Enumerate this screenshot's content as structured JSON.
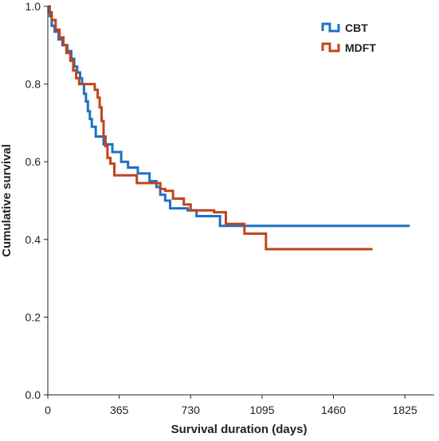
{
  "chart_data": {
    "type": "line",
    "step": true,
    "xlabel": "Survival duration (days)",
    "ylabel": "Cumulative survival",
    "xlim": [
      0,
      1975
    ],
    "ylim": [
      0,
      1.0
    ],
    "x_ticks": [
      0,
      365,
      730,
      1095,
      1460,
      1825
    ],
    "y_ticks": [
      0.0,
      0.2,
      0.4,
      0.6,
      0.8,
      1.0
    ],
    "y_tick_labels": [
      "0.0",
      "0.2",
      "0.4",
      "0.6",
      "0.8",
      "1.0"
    ],
    "grid": false,
    "legend_position": "top-right",
    "series": [
      {
        "name": "CBT",
        "color": "#1f6fc5",
        "points": [
          [
            0,
            1.0
          ],
          [
            10,
            0.975
          ],
          [
            20,
            0.95
          ],
          [
            35,
            0.935
          ],
          [
            55,
            0.915
          ],
          [
            75,
            0.9
          ],
          [
            100,
            0.885
          ],
          [
            120,
            0.865
          ],
          [
            135,
            0.845
          ],
          [
            150,
            0.83
          ],
          [
            165,
            0.815
          ],
          [
            175,
            0.8
          ],
          [
            185,
            0.775
          ],
          [
            195,
            0.755
          ],
          [
            205,
            0.73
          ],
          [
            215,
            0.71
          ],
          [
            225,
            0.69
          ],
          [
            245,
            0.665
          ],
          [
            285,
            0.645
          ],
          [
            330,
            0.625
          ],
          [
            375,
            0.6
          ],
          [
            410,
            0.585
          ],
          [
            460,
            0.57
          ],
          [
            520,
            0.55
          ],
          [
            555,
            0.535
          ],
          [
            575,
            0.515
          ],
          [
            600,
            0.5
          ],
          [
            625,
            0.48
          ],
          [
            715,
            0.475
          ],
          [
            760,
            0.46
          ],
          [
            880,
            0.435
          ],
          [
            990,
            0.435
          ],
          [
            1850,
            0.435
          ]
        ]
      },
      {
        "name": "MDFT",
        "color": "#c0441d",
        "points": [
          [
            0,
            1.0
          ],
          [
            5,
            0.985
          ],
          [
            20,
            0.965
          ],
          [
            40,
            0.94
          ],
          [
            60,
            0.92
          ],
          [
            80,
            0.9
          ],
          [
            95,
            0.88
          ],
          [
            115,
            0.86
          ],
          [
            130,
            0.835
          ],
          [
            145,
            0.815
          ],
          [
            160,
            0.8
          ],
          [
            210,
            0.8
          ],
          [
            240,
            0.785
          ],
          [
            255,
            0.765
          ],
          [
            265,
            0.74
          ],
          [
            275,
            0.705
          ],
          [
            285,
            0.665
          ],
          [
            295,
            0.64
          ],
          [
            305,
            0.61
          ],
          [
            320,
            0.595
          ],
          [
            340,
            0.565
          ],
          [
            450,
            0.565
          ],
          [
            455,
            0.545
          ],
          [
            560,
            0.545
          ],
          [
            575,
            0.53
          ],
          [
            600,
            0.525
          ],
          [
            640,
            0.505
          ],
          [
            695,
            0.49
          ],
          [
            730,
            0.475
          ],
          [
            850,
            0.47
          ],
          [
            910,
            0.44
          ],
          [
            1000,
            0.44
          ],
          [
            1005,
            0.415
          ],
          [
            1110,
            0.415
          ],
          [
            1115,
            0.375
          ],
          [
            1660,
            0.375
          ]
        ]
      }
    ]
  }
}
